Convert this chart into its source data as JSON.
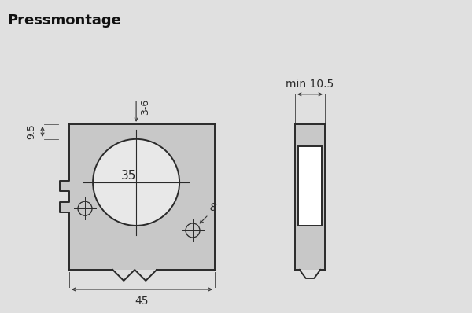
{
  "title": "Pressmontage",
  "bg_color_top": "#d8d8d8",
  "bg_color_main": "#e0e0e0",
  "plate_color": "#c8c8c8",
  "line_color": "#2a2a2a",
  "circle_fill": "#e8e8e8",
  "white_fill": "#ffffff",
  "dim_text_color": "#2a2a2a",
  "dim_35": "35",
  "dim_45": "45",
  "dim_9_5": "9.5",
  "dim_3_6": "3-6",
  "dim_8": "8",
  "dim_min_10_5": "min 10.5",
  "title_fontsize": 13,
  "dim_fontsize": 10,
  "small_dim_fontsize": 9
}
